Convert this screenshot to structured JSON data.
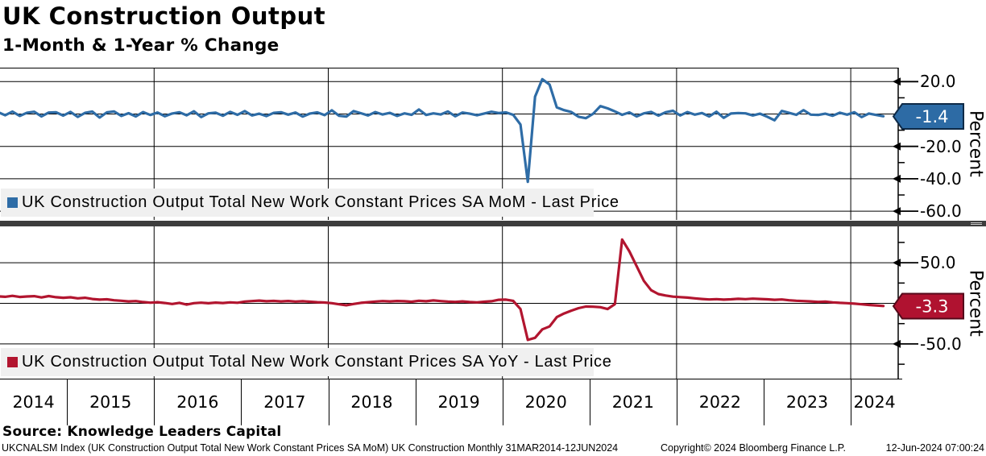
{
  "header": {
    "title": "UK Construction Output",
    "subtitle": "1-Month & 1-Year % Change"
  },
  "colors": {
    "mom_line": "#2e6ca6",
    "yoy_line": "#b2152f",
    "badge_blue_fill": "#2d6ba5",
    "badge_blue_border": "#0e2a47",
    "badge_red_fill": "#b01230",
    "badge_red_border": "#55091a",
    "legend_bg": "#f0f0f0",
    "separator_bar": "#3d3d3d",
    "grid": "#000000"
  },
  "chart_data": [
    {
      "type": "line",
      "panel": "top",
      "legend": "UK Construction Output Total New Work Constant Prices SA MoM - Last Price",
      "ylabel": "Percent",
      "color": "#2e6ca6",
      "last_price": -1.4,
      "last_price_label": "-1.4",
      "ytick_labels": [
        20.0,
        -20.0,
        -40.0,
        -60.0
      ],
      "ylim": [
        -65,
        28
      ],
      "grid": true,
      "frequency": "Monthly",
      "start_month": "2014-03",
      "end_month": "2024-05",
      "values": [
        1.2,
        -0.8,
        1.5,
        -1.2,
        0.8,
        1.4,
        -1.5,
        0.9,
        1.1,
        -1.0,
        1.3,
        -1.8,
        0.7,
        1.5,
        -2.2,
        1.0,
        1.6,
        -1.2,
        0.5,
        -1.5,
        1.2,
        -0.6,
        0.9,
        -1.4,
        0.3,
        1.1,
        -0.8,
        1.7,
        -1.9,
        0.4,
        0.8,
        -1.1,
        1.3,
        -0.5,
        1.8,
        -0.9,
        0.2,
        -1.3,
        0.7,
        1.1,
        -0.4,
        0.9,
        -1.6,
        0.3,
        1.0,
        -0.7,
        2.3,
        -1.1,
        -1.6,
        1.8,
        0.5,
        -0.9,
        1.2,
        -0.3,
        0.7,
        -1.2,
        0.4,
        -0.5,
        2.8,
        -0.6,
        0.4,
        -0.3,
        1.6,
        -1.4,
        0.9,
        0.2,
        -0.8,
        0.3,
        1.4,
        0.6,
        1.0,
        -0.5,
        -6.5,
        -41.9,
        10.7,
        21.5,
        18.2,
        4.1,
        2.4,
        1.2,
        -1.7,
        -2.6,
        0.1,
        4.9,
        3.5,
        1.6,
        -0.5,
        1.0,
        -1.5,
        0.4,
        1.3,
        -1.0,
        1.1,
        2.0,
        -0.9,
        1.2,
        -0.4,
        0.6,
        -1.5,
        1.4,
        -2.4,
        0.3,
        0.6,
        0.4,
        -0.9,
        0.2,
        -1.7,
        -3.9,
        1.9,
        0.7,
        -0.5,
        2.4,
        -0.4,
        -0.6,
        0.2,
        -1.1,
        0.8,
        -0.4,
        1.1,
        -1.9,
        0.3,
        -0.6,
        -1.4
      ]
    },
    {
      "type": "line",
      "panel": "bottom",
      "legend": "UK Construction Output Total New Work Constant Prices SA YoY - Last Price",
      "ylabel": "Percent",
      "color": "#b2152f",
      "last_price": -3.3,
      "last_price_label": "-3.3",
      "ytick_labels": [
        50.0,
        -50.0
      ],
      "ylim": [
        -94,
        94
      ],
      "grid": true,
      "frequency": "Monthly",
      "start_month": "2014-03",
      "end_month": "2024-05",
      "values": [
        8.6,
        8.0,
        9.2,
        7.8,
        8.4,
        8.8,
        7.2,
        8.9,
        7.5,
        6.8,
        7.4,
        6.2,
        6.8,
        5.4,
        4.6,
        5.0,
        3.8,
        3.2,
        2.4,
        2.8,
        1.6,
        0.8,
        1.4,
        0.4,
        -0.8,
        0.6,
        -1.6,
        0.2,
        0.8,
        0.1,
        0.9,
        0.4,
        1.2,
        0.7,
        2.2,
        2.8,
        3.4,
        2.6,
        3.0,
        2.4,
        2.9,
        2.2,
        2.6,
        2.0,
        1.4,
        1.0,
        0.2,
        -1.2,
        -2.4,
        -0.8,
        0.6,
        1.4,
        2.2,
        2.8,
        2.4,
        2.9,
        2.6,
        2.0,
        3.2,
        2.6,
        3.6,
        2.8,
        2.2,
        1.8,
        2.4,
        1.6,
        1.2,
        2.0,
        2.6,
        4.4,
        4.6,
        3.0,
        -7.0,
        -45.0,
        -42.5,
        -32.0,
        -28.5,
        -17.0,
        -12.5,
        -9.0,
        -6.0,
        -4.0,
        -4.2,
        -4.8,
        -7.0,
        -1.0,
        78.6,
        64.0,
        45.8,
        27.6,
        16.2,
        11.4,
        9.6,
        8.2,
        7.6,
        7.0,
        6.2,
        5.4,
        4.8,
        5.2,
        4.6,
        5.0,
        5.6,
        5.2,
        5.8,
        5.4,
        5.0,
        4.4,
        4.8,
        3.8,
        3.2,
        2.8,
        2.4,
        1.8,
        2.2,
        1.2,
        0.6,
        0.2,
        -0.4,
        -1.2,
        -2.0,
        -2.6,
        -3.3
      ]
    }
  ],
  "x_axis": {
    "years": [
      "2014",
      "2015",
      "2016",
      "2017",
      "2018",
      "2019",
      "2020",
      "2021",
      "2022",
      "2023",
      "2024"
    ],
    "range_label": "31MAR2014-12JUN2024"
  },
  "source": "Source: Knowledge Leaders Capital",
  "footer": {
    "left": "UKCNALSM Index (UK Construction Output Total New Work Constant Prices SA MoM) UK Construction  Monthly 31MAR2014-12JUN2024",
    "copyright": "Copyright© 2024 Bloomberg Finance L.P.",
    "timestamp": "12-Jun-2024 07:00:24"
  }
}
